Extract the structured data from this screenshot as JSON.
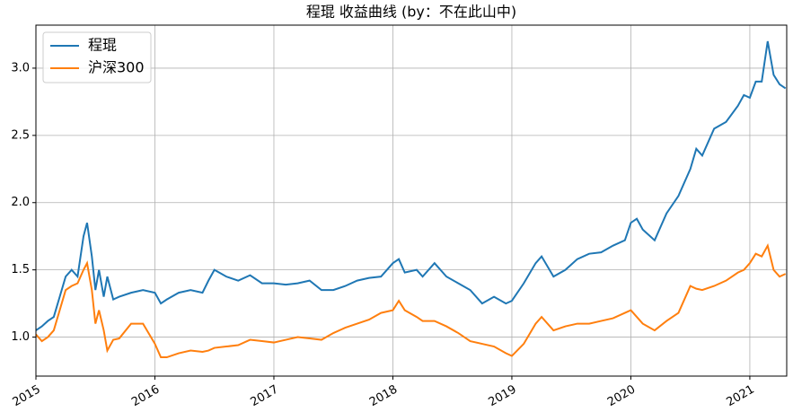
{
  "chart_data": {
    "type": "line",
    "title": "程琨 收益曲线  (by：不在此山中)",
    "x": [
      2015.0,
      2015.05,
      2015.1,
      2015.15,
      2015.2,
      2015.25,
      2015.3,
      2015.35,
      2015.4,
      2015.43,
      2015.47,
      2015.5,
      2015.53,
      2015.57,
      2015.6,
      2015.65,
      2015.7,
      2015.8,
      2015.9,
      2016.0,
      2016.05,
      2016.1,
      2016.2,
      2016.3,
      2016.4,
      2016.45,
      2016.5,
      2016.6,
      2016.7,
      2016.8,
      2016.9,
      2017.0,
      2017.1,
      2017.2,
      2017.3,
      2017.4,
      2017.5,
      2017.6,
      2017.7,
      2017.8,
      2017.9,
      2018.0,
      2018.05,
      2018.1,
      2018.2,
      2018.25,
      2018.35,
      2018.45,
      2018.55,
      2018.65,
      2018.75,
      2018.85,
      2018.95,
      2019.0,
      2019.1,
      2019.2,
      2019.25,
      2019.35,
      2019.45,
      2019.55,
      2019.65,
      2019.75,
      2019.85,
      2019.95,
      2020.0,
      2020.05,
      2020.1,
      2020.2,
      2020.3,
      2020.4,
      2020.5,
      2020.55,
      2020.6,
      2020.7,
      2020.8,
      2020.9,
      2020.95,
      2021.0,
      2021.05,
      2021.1,
      2021.15,
      2021.2,
      2021.25,
      2021.3
    ],
    "series": [
      {
        "name": "程琨",
        "color": "#1f77b4",
        "values": [
          1.05,
          1.08,
          1.12,
          1.15,
          1.3,
          1.45,
          1.5,
          1.45,
          1.75,
          1.85,
          1.6,
          1.35,
          1.5,
          1.3,
          1.45,
          1.28,
          1.3,
          1.33,
          1.35,
          1.33,
          1.25,
          1.28,
          1.33,
          1.35,
          1.33,
          1.42,
          1.5,
          1.45,
          1.42,
          1.46,
          1.4,
          1.4,
          1.39,
          1.4,
          1.42,
          1.35,
          1.35,
          1.38,
          1.42,
          1.44,
          1.45,
          1.55,
          1.58,
          1.48,
          1.5,
          1.45,
          1.55,
          1.45,
          1.4,
          1.35,
          1.25,
          1.3,
          1.25,
          1.27,
          1.4,
          1.55,
          1.6,
          1.45,
          1.5,
          1.58,
          1.62,
          1.63,
          1.68,
          1.72,
          1.85,
          1.88,
          1.8,
          1.72,
          1.92,
          2.05,
          2.25,
          2.4,
          2.35,
          2.55,
          2.6,
          2.72,
          2.8,
          2.78,
          2.9,
          2.9,
          3.2,
          2.95,
          2.88,
          2.85
        ]
      },
      {
        "name": "沪深300",
        "color": "#ff7f0e",
        "values": [
          1.02,
          0.97,
          1.0,
          1.05,
          1.2,
          1.35,
          1.38,
          1.4,
          1.5,
          1.55,
          1.35,
          1.1,
          1.2,
          1.05,
          0.9,
          0.98,
          0.99,
          1.1,
          1.1,
          0.95,
          0.85,
          0.85,
          0.88,
          0.9,
          0.89,
          0.9,
          0.92,
          0.93,
          0.94,
          0.98,
          0.97,
          0.96,
          0.98,
          1.0,
          0.99,
          0.98,
          1.03,
          1.07,
          1.1,
          1.13,
          1.18,
          1.2,
          1.27,
          1.2,
          1.15,
          1.12,
          1.12,
          1.08,
          1.03,
          0.97,
          0.95,
          0.93,
          0.88,
          0.86,
          0.95,
          1.1,
          1.15,
          1.05,
          1.08,
          1.1,
          1.1,
          1.12,
          1.14,
          1.18,
          1.2,
          1.15,
          1.1,
          1.05,
          1.12,
          1.18,
          1.38,
          1.36,
          1.35,
          1.38,
          1.42,
          1.48,
          1.5,
          1.55,
          1.62,
          1.6,
          1.68,
          1.5,
          1.45,
          1.47
        ]
      }
    ],
    "xlim": [
      2015,
      2021.31
    ],
    "xticks": [
      2015,
      2016,
      2017,
      2018,
      2019,
      2020,
      2021
    ],
    "ylim": [
      0.71,
      3.32
    ],
    "yticks": [
      {
        "value": 1,
        "label": "1.0"
      },
      1.5,
      {
        "value": 2,
        "label": "2.0"
      },
      2.5,
      {
        "value": 3,
        "label": "3.0"
      }
    ],
    "grid": true,
    "legend": "upper-left"
  }
}
